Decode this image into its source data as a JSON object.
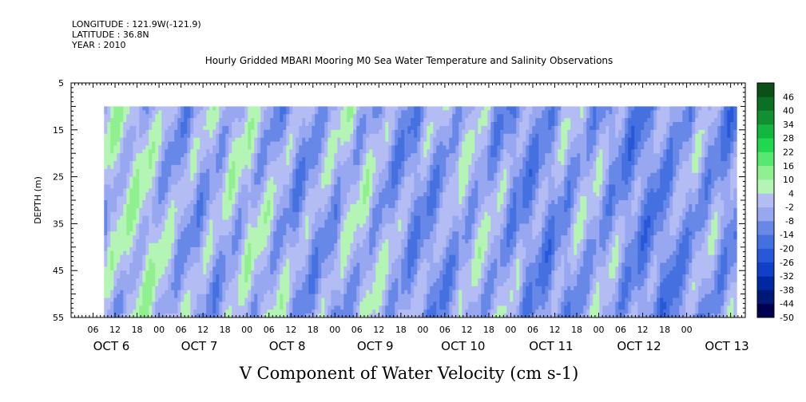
{
  "header": {
    "longitude": "LONGITUDE : 121.9W(-121.9)",
    "latitude": "LATITUDE : 36.8N",
    "year": "YEAR : 2010"
  },
  "chart_data": {
    "type": "heatmap",
    "title": "Hourly Gridded MBARI Mooring M0 Sea Water Temperature and Salinity Observations",
    "xlabel": "V Component of Water Velocity (cm s-1)",
    "ylabel": "DEPTH (m)",
    "y_axis": {
      "ylim": [
        5,
        55
      ],
      "inverted": true,
      "ticks": [
        5,
        15,
        25,
        35,
        45,
        55
      ],
      "tick_labels": [
        "5",
        "15",
        "25",
        "35",
        "45",
        "55"
      ]
    },
    "x_axis": {
      "hour_tick_labels": [
        "06",
        "12",
        "18",
        "00",
        "06",
        "12",
        "18",
        "00",
        "06",
        "12",
        "18",
        "00",
        "06",
        "12",
        "18",
        "00",
        "06",
        "12",
        "18",
        "00",
        "06",
        "12",
        "18",
        "00",
        "06",
        "12",
        "18",
        "00"
      ],
      "day_labels": [
        "OCT  6",
        "OCT  7",
        "OCT  8",
        "OCT  9",
        "OCT 10",
        "OCT 11",
        "OCT 12",
        "OCT 13"
      ],
      "range_hours_from_oct6_00": [
        -12,
        172
      ]
    },
    "data_extent": {
      "time_start_hours_from_oct6_00": -3,
      "time_end_hours_from_oct6_00": 169,
      "depth_min": 10,
      "depth_max": 55
    },
    "colorbar": {
      "levels": [
        -50,
        -44,
        -38,
        -32,
        -26,
        -20,
        -14,
        -8,
        -2,
        4,
        10,
        16,
        22,
        28,
        34,
        40,
        46
      ],
      "tick_labels": [
        "46",
        "40",
        "34",
        "28",
        "22",
        "16",
        "10",
        "4",
        "-2",
        "-8",
        "-14",
        "-20",
        "-26",
        "-32",
        "-38",
        "-44",
        "-50"
      ],
      "colors": [
        "#000050",
        "#001878",
        "#0028a0",
        "#1040c8",
        "#2858d8",
        "#4470e0",
        "#6888e8",
        "#98a8f0",
        "#b4bcf4",
        "#b4f4b4",
        "#90f090",
        "#58e870",
        "#20d850",
        "#10b840",
        "#109030",
        "#0c7024",
        "#0a5018"
      ]
    },
    "grid": false
  }
}
